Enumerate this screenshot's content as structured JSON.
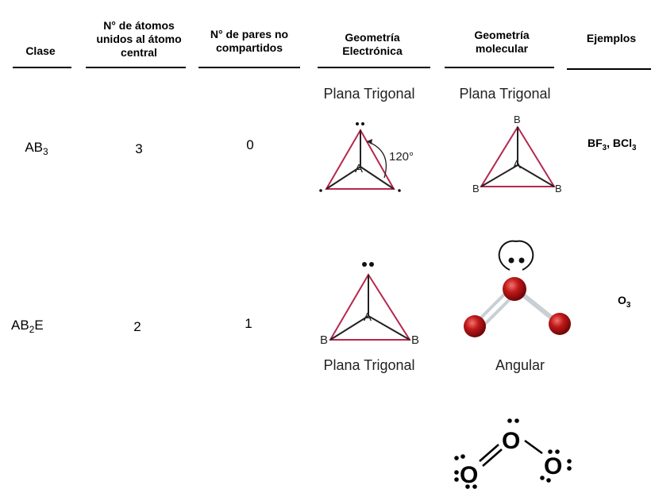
{
  "headers": {
    "clase": "Clase",
    "atomos": "N° de átomos unidos al átomo central",
    "pares": "N° de pares no compartidos",
    "geom_electronica": "Geometría Electrónica",
    "geom_molecular": "Geometría molecular",
    "ejemplos": "Ejemplos"
  },
  "rows": [
    {
      "clase_base": "AB",
      "clase_sub": "3",
      "clase_suffix": "",
      "atomos": "3",
      "pares": "0",
      "geom_electronica": "Plana Trigonal",
      "geom_molecular": "Plana Trigonal",
      "angle": "120°",
      "examples": [
        {
          "base": "BF",
          "sub": "3",
          "sep": ", "
        },
        {
          "base": "BCl",
          "sub": "3",
          "sep": ""
        }
      ]
    },
    {
      "clase_base": "AB",
      "clase_sub": "2",
      "clase_suffix": "E",
      "atomos": "2",
      "pares": "1",
      "geom_electronica": "Plana Trigonal",
      "geom_molecular": "Angular",
      "examples": [
        {
          "base": "O",
          "sub": "3",
          "sep": ""
        }
      ]
    }
  ],
  "atom_labels": {
    "central": "A",
    "ligand": "B",
    "oxygen": "O"
  },
  "colors": {
    "triangle": "#b5284e",
    "sphere": "#c0181a",
    "bond": "#c8d0d4"
  }
}
